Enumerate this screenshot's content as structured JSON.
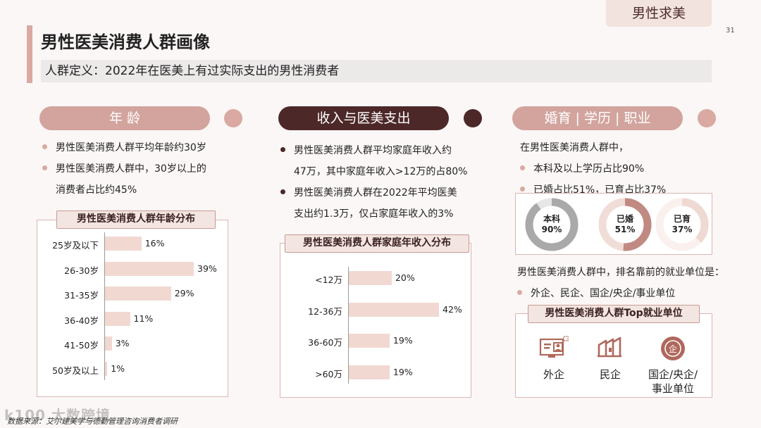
{
  "header": {
    "tag": "男性求美",
    "page_number": "31",
    "title": "男性医美消费人群画像",
    "definition": "人群定义：2022年在医美上有过实际支出的男性消费者"
  },
  "age": {
    "pill": "年 龄",
    "bullets": [
      "男性医美消费人群平均年龄约30岁",
      "男性医美消费人群中，30岁以上的",
      "消费者占比约45%"
    ],
    "chart_title": "男性医美消费人群年龄分布"
  },
  "income": {
    "pill": "收入与医美支出",
    "bullets": [
      "男性医美消费人群平均家庭年收入约",
      "47万，其中家庭年收入>12万的占80%",
      "男性医美消费人群在2022年平均医美",
      "支出约1.3万，仅占家庭年收入的3%"
    ],
    "chart_title": "男性医美消费人群家庭年收入分布"
  },
  "profile": {
    "pill": "婚育 | 学历 | 职业",
    "intro": "在男性医美消费人群中，",
    "bullets": [
      "本科及以上学历占比90%",
      "已婚占比51%，已育占比37%"
    ],
    "donuts": [
      {
        "label": "本科",
        "value_text": "90%",
        "value": 90,
        "color": "#a9a9a9",
        "track": "#e6e6e6"
      },
      {
        "label": "已婚",
        "value_text": "51%",
        "value": 51,
        "color": "#c08a82",
        "track": "#f1ddd8"
      },
      {
        "label": "已育",
        "value_text": "37%",
        "value": 37,
        "color": "#efd9d3",
        "track": "#faf0ed"
      }
    ],
    "employment_intro": "男性医美消费人群中，排名靠前的就业单位是：",
    "employment_bullet": "外企、民企、国企/央企/事业单位",
    "employment_title": "男性医美消费人群Top就业单位",
    "employers": [
      {
        "icon": "foreign-company-icon",
        "label": "外企"
      },
      {
        "icon": "private-company-icon",
        "label": "民企"
      },
      {
        "icon": "state-enterprise-icon",
        "label_line1": "国企/央企/",
        "label_line2": "事业单位"
      }
    ],
    "icon_color": "#b0685c"
  },
  "footer": {
    "source": "数据来源：艾尔建美学与德勤管理咨询消费者调研",
    "watermark": "k100 大数跨境"
  },
  "chart_data": [
    {
      "type": "bar",
      "orientation": "horizontal",
      "title": "男性医美消费人群年龄分布",
      "categories": [
        "25岁及以下",
        "26-30岁",
        "31-35岁",
        "36-40岁",
        "41-50岁",
        "50岁及以上"
      ],
      "values": [
        16,
        39,
        29,
        11,
        3,
        1
      ],
      "value_labels": [
        "16%",
        "39%",
        "29%",
        "11%",
        "3%",
        "1%"
      ],
      "xlim": [
        0,
        39
      ],
      "color": "#f1d9d2"
    },
    {
      "type": "bar",
      "orientation": "horizontal",
      "title": "男性医美消费人群家庭年收入分布",
      "categories": [
        "<12万",
        "12-36万",
        "36-60万",
        ">60万"
      ],
      "values": [
        20,
        42,
        19,
        19
      ],
      "value_labels": [
        "20%",
        "42%",
        "19%",
        "19%"
      ],
      "xlim": [
        0,
        42
      ],
      "color": "#f1d9d2"
    }
  ]
}
